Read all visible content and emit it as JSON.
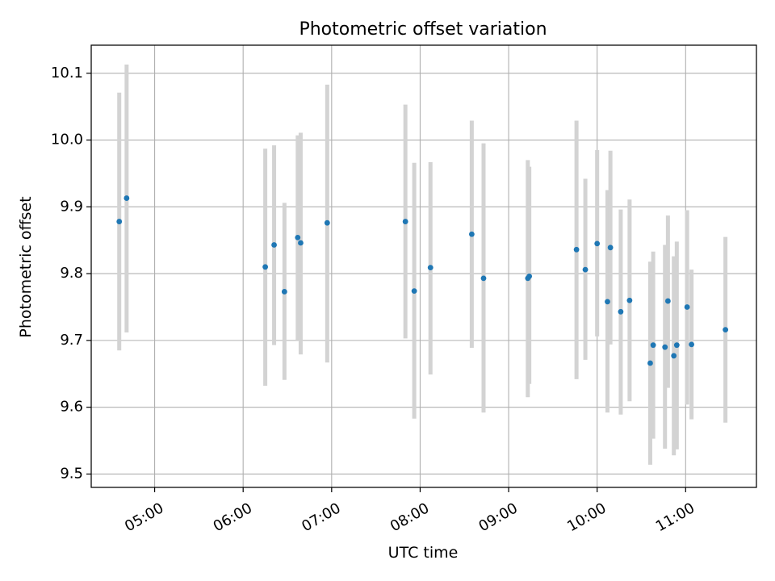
{
  "chart_data": {
    "type": "scatter",
    "title": "Photometric offset variation",
    "xlabel": "UTC time",
    "ylabel": "Photometric offset",
    "x_ticks": [
      "05:00",
      "06:00",
      "07:00",
      "08:00",
      "09:00",
      "10:00",
      "11:00"
    ],
    "y_ticks": [
      "9.5",
      "9.6",
      "9.7",
      "9.8",
      "9.9",
      "10.0",
      "10.1"
    ],
    "xlim": [
      "04:17",
      "11:48"
    ],
    "ylim": [
      9.48,
      10.142
    ],
    "grid": true,
    "colors": {
      "points": "#1f77b4",
      "errorbars": "#d3d3d3",
      "grid": "#b0b0b0",
      "axes": "#000000"
    },
    "points": [
      {
        "x": "04:36",
        "y": 9.878,
        "y_low": 9.685,
        "y_high": 10.071
      },
      {
        "x": "04:41",
        "y": 9.913,
        "y_low": 9.712,
        "y_high": 10.113
      },
      {
        "x": "06:15",
        "y": 9.81,
        "y_low": 9.632,
        "y_high": 9.987
      },
      {
        "x": "06:21",
        "y": 9.843,
        "y_low": 9.693,
        "y_high": 9.992
      },
      {
        "x": "06:28",
        "y": 9.773,
        "y_low": 9.641,
        "y_high": 9.906
      },
      {
        "x": "06:37",
        "y": 9.854,
        "y_low": 9.7,
        "y_high": 10.007
      },
      {
        "x": "06:39",
        "y": 9.846,
        "y_low": 9.679,
        "y_high": 10.011
      },
      {
        "x": "06:57",
        "y": 9.876,
        "y_low": 9.667,
        "y_high": 10.083
      },
      {
        "x": "07:50",
        "y": 9.878,
        "y_low": 9.703,
        "y_high": 10.053
      },
      {
        "x": "07:56",
        "y": 9.774,
        "y_low": 9.583,
        "y_high": 9.966
      },
      {
        "x": "08:07",
        "y": 9.809,
        "y_low": 9.649,
        "y_high": 9.967
      },
      {
        "x": "08:35",
        "y": 9.859,
        "y_low": 9.689,
        "y_high": 10.029
      },
      {
        "x": "08:43",
        "y": 9.793,
        "y_low": 9.592,
        "y_high": 9.995
      },
      {
        "x": "09:13",
        "y": 9.793,
        "y_low": 9.615,
        "y_high": 9.97
      },
      {
        "x": "09:14",
        "y": 9.796,
        "y_low": 9.635,
        "y_high": 9.96
      },
      {
        "x": "09:46",
        "y": 9.836,
        "y_low": 9.642,
        "y_high": 10.029
      },
      {
        "x": "09:52",
        "y": 9.806,
        "y_low": 9.671,
        "y_high": 9.942
      },
      {
        "x": "10:00",
        "y": 9.845,
        "y_low": 9.706,
        "y_high": 9.985
      },
      {
        "x": "10:07",
        "y": 9.758,
        "y_low": 9.592,
        "y_high": 9.925
      },
      {
        "x": "10:09",
        "y": 9.839,
        "y_low": 9.694,
        "y_high": 9.984
      },
      {
        "x": "10:16",
        "y": 9.743,
        "y_low": 9.589,
        "y_high": 9.896
      },
      {
        "x": "10:22",
        "y": 9.76,
        "y_low": 9.609,
        "y_high": 9.911
      },
      {
        "x": "10:36",
        "y": 9.666,
        "y_low": 9.514,
        "y_high": 9.818
      },
      {
        "x": "10:38",
        "y": 9.693,
        "y_low": 9.553,
        "y_high": 9.833
      },
      {
        "x": "10:46",
        "y": 9.69,
        "y_low": 9.538,
        "y_high": 9.843
      },
      {
        "x": "10:48",
        "y": 9.759,
        "y_low": 9.629,
        "y_high": 9.887
      },
      {
        "x": "10:52",
        "y": 9.677,
        "y_low": 9.528,
        "y_high": 9.826
      },
      {
        "x": "10:54",
        "y": 9.693,
        "y_low": 9.537,
        "y_high": 9.848
      },
      {
        "x": "11:01",
        "y": 9.75,
        "y_low": 9.604,
        "y_high": 9.895
      },
      {
        "x": "11:04",
        "y": 9.694,
        "y_low": 9.582,
        "y_high": 9.806
      },
      {
        "x": "11:27",
        "y": 9.716,
        "y_low": 9.577,
        "y_high": 9.855
      }
    ]
  }
}
